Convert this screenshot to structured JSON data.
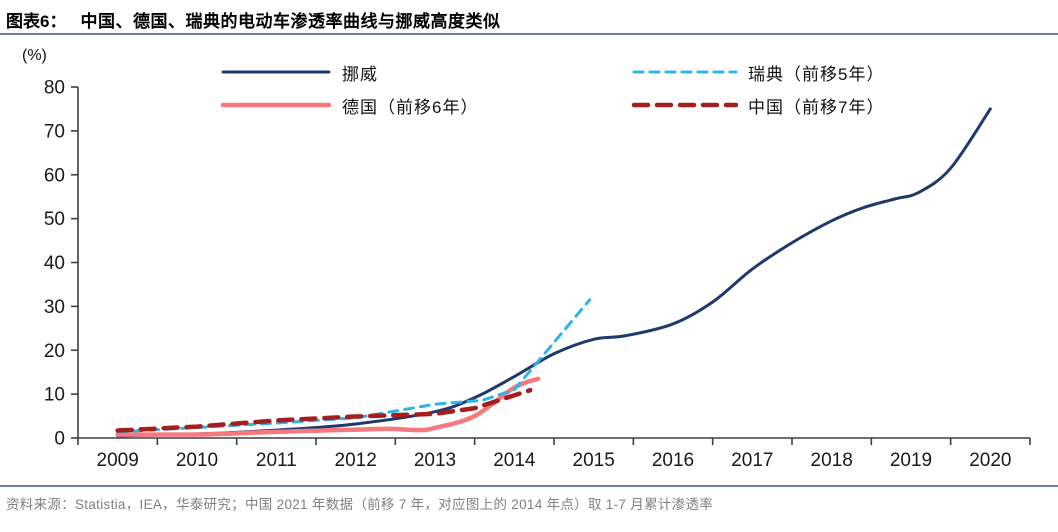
{
  "header": {
    "tag": "图表6：",
    "title": "中国、德国、瑞典的电动车渗透率曲线与挪威高度类似"
  },
  "footer": {
    "text": "资料来源：Statistia，IEA，华泰研究；中国 2021 年数据（前移 7 年，对应图上的 2014 年点）取 1-7 月累计渗透率"
  },
  "colors": {
    "norway": "#1e3a6d",
    "germany": "#f5797d",
    "sweden": "#2eb4e9",
    "china": "#a31f1f",
    "rule_blue": "#6683ab",
    "axis": "#3f3f3f",
    "footer_gray": "#7f7f7f"
  },
  "chart_data": {
    "type": "line",
    "unit_label": "(%)",
    "title": "",
    "xlabel": "",
    "ylabel": "(%)",
    "grid": false,
    "legend_position": "top",
    "xlim": [
      2008.5,
      2020.5
    ],
    "ylim": [
      0,
      80
    ],
    "yticks": [
      0,
      10,
      20,
      30,
      40,
      50,
      60,
      70,
      80
    ],
    "xticks": [
      2009,
      2010,
      2011,
      2012,
      2013,
      2014,
      2015,
      2016,
      2017,
      2018,
      2019,
      2020
    ],
    "series": [
      {
        "name": "挪威",
        "color": "#1e3a6d",
        "style": "solid",
        "width": 3,
        "smooth": true,
        "x": [
          2009,
          2010,
          2011,
          2012,
          2013,
          2013.5,
          2014,
          2014.5,
          2015,
          2015.4,
          2016,
          2016.5,
          2017,
          2017.5,
          2018,
          2018.4,
          2018.8,
          2019.1,
          2019.5,
          2020
        ],
        "y": [
          0.5,
          0.9,
          1.8,
          3.2,
          6.0,
          9.2,
          14.0,
          19.2,
          22.5,
          23.3,
          26.0,
          31.0,
          38.5,
          44.5,
          49.5,
          52.5,
          54.5,
          56.0,
          61.5,
          75.0
        ]
      },
      {
        "name": "德国（前移6年）",
        "color": "#f5797d",
        "style": "solid",
        "width": 4.5,
        "smooth": true,
        "x": [
          2009,
          2010,
          2011,
          2012,
          2012.4,
          2012.8,
          2013,
          2013.5,
          2014,
          2014.3
        ],
        "y": [
          0.8,
          0.8,
          1.4,
          1.9,
          2.1,
          1.8,
          2.3,
          5.0,
          11.5,
          13.5
        ]
      },
      {
        "name": "瑞典（前移5年）",
        "color": "#2eb4e9",
        "style": "dashed",
        "dash": "9 7",
        "width": 3,
        "smooth": false,
        "x": [
          2009,
          2010,
          2011,
          2012,
          2013,
          2013.6,
          2014,
          2014.95
        ],
        "y": [
          1.4,
          2.4,
          3.4,
          4.6,
          7.7,
          8.6,
          11.0,
          31.5
        ]
      },
      {
        "name": "中国（前移7年）",
        "color": "#a31f1f",
        "style": "dashed",
        "dash": "14 9",
        "width": 4.5,
        "smooth": false,
        "x": [
          2009,
          2010,
          2011,
          2012,
          2013,
          2013.5,
          2014.2
        ],
        "y": [
          1.7,
          2.6,
          4.0,
          4.9,
          5.5,
          6.8,
          10.9
        ]
      }
    ]
  }
}
